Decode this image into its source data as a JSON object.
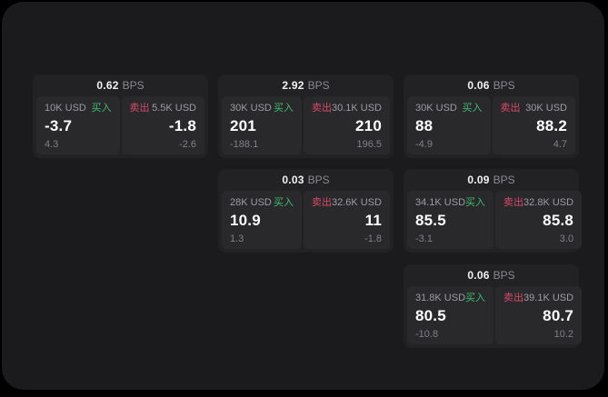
{
  "labels": {
    "bps_unit": "BPS",
    "buy": "买入",
    "sell": "卖出"
  },
  "colors": {
    "background": "#000000",
    "surface": "#1b1b1d",
    "card": "#222225",
    "tile": "#29292c",
    "buy_accent": "#3ebd72",
    "sell_accent": "#d84a6b"
  },
  "cards": [
    {
      "bps": "0.62",
      "buy": {
        "size": "10K USD",
        "value": "-3.7",
        "delta": "4.3"
      },
      "sell": {
        "size": "5.5K USD",
        "value": "-1.8",
        "delta": "-2.6"
      }
    },
    {
      "bps": "2.92",
      "buy": {
        "size": "30K USD",
        "value": "201",
        "delta": "-188.1"
      },
      "sell": {
        "size": "30.1K USD",
        "value": "210",
        "delta": "196.5"
      }
    },
    {
      "bps": "0.06",
      "buy": {
        "size": "30K USD",
        "value": "88",
        "delta": "-4.9"
      },
      "sell": {
        "size": "30K USD",
        "value": "88.2",
        "delta": "4.7"
      }
    },
    {
      "bps": "0.03",
      "buy": {
        "size": "28K USD",
        "value": "10.9",
        "delta": "1.3"
      },
      "sell": {
        "size": "32.6K USD",
        "value": "11",
        "delta": "-1.8"
      }
    },
    {
      "bps": "0.09",
      "buy": {
        "size": "34.1K USD",
        "value": "85.5",
        "delta": "-3.1"
      },
      "sell": {
        "size": "32.8K USD",
        "value": "85.8",
        "delta": "3.0"
      }
    },
    {
      "bps": "0.06",
      "buy": {
        "size": "31.8K USD",
        "value": "80.5",
        "delta": "-10.8"
      },
      "sell": {
        "size": "39.1K USD",
        "value": "80.7",
        "delta": "10.2"
      }
    }
  ]
}
